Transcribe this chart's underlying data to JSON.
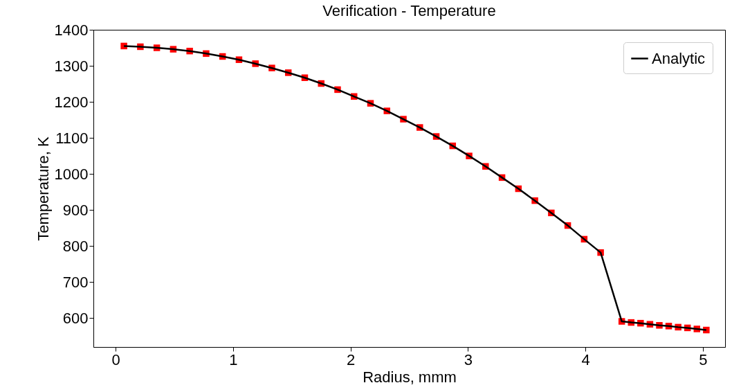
{
  "chart_data": {
    "type": "scatter",
    "title": "Verification - Temperature",
    "xlabel": "Radius, mmm",
    "ylabel": "Temperature, K",
    "xlim": [
      -0.19,
      5.19
    ],
    "xticks": [
      0,
      1,
      2,
      3,
      4,
      5
    ],
    "ylim": [
      520,
      1400
    ],
    "yticks": [
      600,
      700,
      800,
      900,
      1000,
      1100,
      1200,
      1300,
      1400
    ],
    "grid": false,
    "legend": "top right",
    "series": [
      {
        "marker": "square",
        "color": "#ff0000",
        "x": [
          0.07,
          0.21,
          0.35,
          0.49,
          0.63,
          0.77,
          0.91,
          1.05,
          1.19,
          1.33,
          1.47,
          1.61,
          1.75,
          1.89,
          2.03,
          2.17,
          2.31,
          2.45,
          2.59,
          2.73,
          2.87,
          3.01,
          3.15,
          3.29,
          3.43,
          3.57,
          3.71,
          3.85,
          3.99,
          4.13,
          4.31,
          4.39,
          4.47,
          4.55,
          4.63,
          4.71,
          4.79,
          4.87,
          4.95,
          5.03
        ],
        "values": [
          1355,
          1353,
          1350,
          1346,
          1341,
          1334,
          1326,
          1317,
          1306,
          1294,
          1281,
          1267,
          1251,
          1234,
          1215,
          1196,
          1175,
          1152,
          1129,
          1104,
          1078,
          1050,
          1021,
          990,
          959,
          926,
          892,
          857,
          819,
          782,
          591,
          588,
          586,
          583,
          580,
          578,
          575,
          573,
          570,
          567
        ]
      },
      {
        "type": "line",
        "name": "Analytic",
        "color": "#000000",
        "line_style": "solid",
        "x": [
          0.07,
          0.21,
          0.35,
          0.49,
          0.63,
          0.77,
          0.91,
          1.05,
          1.19,
          1.33,
          1.47,
          1.61,
          1.75,
          1.89,
          2.03,
          2.17,
          2.31,
          2.45,
          2.59,
          2.73,
          2.87,
          3.01,
          3.15,
          3.29,
          3.43,
          3.57,
          3.71,
          3.85,
          3.99,
          4.13,
          4.31,
          4.39,
          4.47,
          4.55,
          4.63,
          4.71,
          4.79,
          4.87,
          4.95,
          5.03
        ],
        "values": [
          1355,
          1353,
          1350,
          1346,
          1341,
          1334,
          1326,
          1317,
          1306,
          1294,
          1281,
          1267,
          1251,
          1234,
          1215,
          1196,
          1175,
          1152,
          1129,
          1104,
          1078,
          1050,
          1021,
          990,
          959,
          926,
          892,
          857,
          819,
          782,
          591,
          588,
          586,
          583,
          580,
          578,
          575,
          573,
          570,
          567
        ]
      }
    ]
  }
}
